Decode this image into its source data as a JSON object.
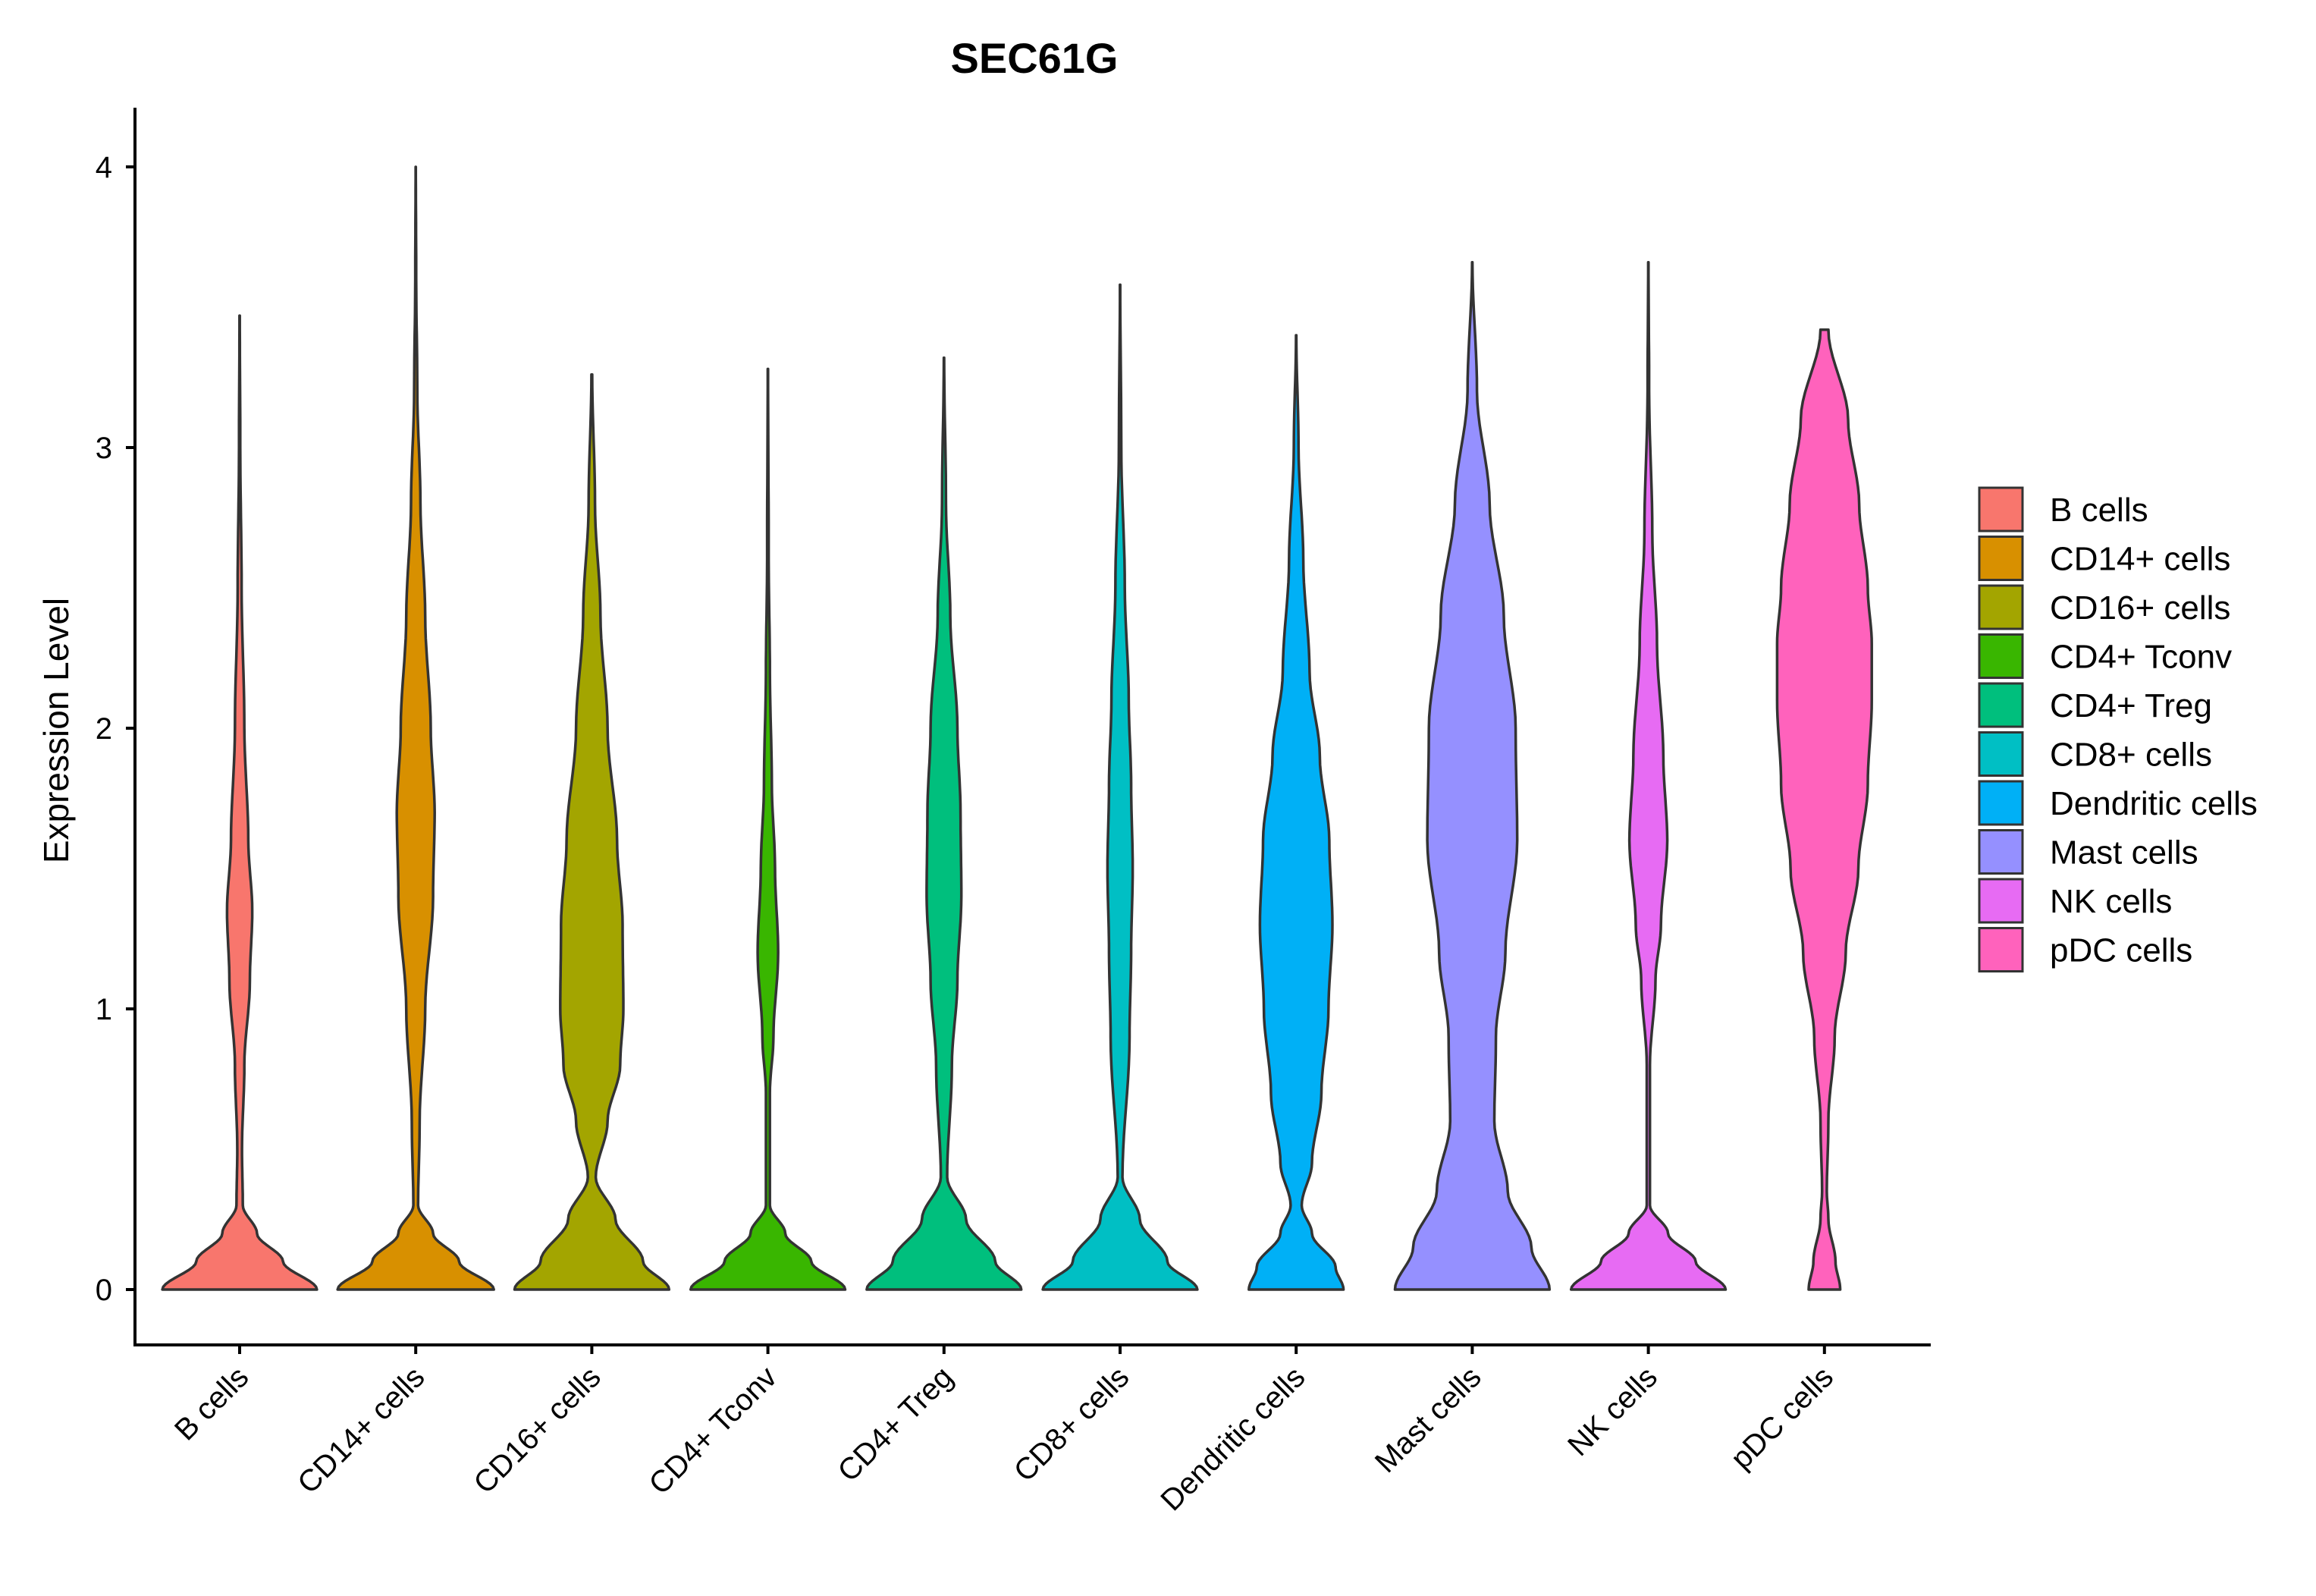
{
  "chart_data": {
    "type": "violin",
    "title": "SEC61G",
    "xlabel": "",
    "ylabel": "Expression Level",
    "ylim": [
      -0.2,
      4.2
    ],
    "yticks": [
      0,
      1,
      2,
      3,
      4
    ],
    "grid": false,
    "legend_position": "right",
    "categories": [
      "B cells",
      "CD14+ cells",
      "CD16+ cells",
      "CD4+ Tconv",
      "CD4+ Treg",
      "CD8+ cells",
      "Dendritic cells",
      "Mast cells",
      "NK cells",
      "pDC cells"
    ],
    "series": [
      {
        "name": "B cells",
        "color": "#F8766D",
        "min": 0,
        "max": 3.47,
        "profile": [
          [
            0,
            0.98
          ],
          [
            0.1,
            0.55
          ],
          [
            0.2,
            0.22
          ],
          [
            0.3,
            0.04
          ],
          [
            0.5,
            0.03
          ],
          [
            0.8,
            0.06
          ],
          [
            1.1,
            0.13
          ],
          [
            1.35,
            0.16
          ],
          [
            1.6,
            0.11
          ],
          [
            2.0,
            0.06
          ],
          [
            2.5,
            0.025
          ],
          [
            3.0,
            0.008
          ],
          [
            3.47,
            0.002
          ]
        ]
      },
      {
        "name": "CD14+ cells",
        "color": "#D89000",
        "min": 0,
        "max": 4.0,
        "profile": [
          [
            0,
            0.99
          ],
          [
            0.1,
            0.55
          ],
          [
            0.2,
            0.22
          ],
          [
            0.3,
            0.03
          ],
          [
            0.6,
            0.05
          ],
          [
            1.0,
            0.12
          ],
          [
            1.4,
            0.22
          ],
          [
            1.7,
            0.24
          ],
          [
            2.0,
            0.19
          ],
          [
            2.4,
            0.12
          ],
          [
            2.8,
            0.06
          ],
          [
            3.2,
            0.02
          ],
          [
            3.6,
            0.006
          ],
          [
            4.0,
            0.001
          ]
        ]
      },
      {
        "name": "CD16+ cells",
        "color": "#A3A500",
        "min": 0,
        "max": 3.26,
        "profile": [
          [
            0,
            0.98
          ],
          [
            0.1,
            0.65
          ],
          [
            0.25,
            0.3
          ],
          [
            0.4,
            0.05
          ],
          [
            0.6,
            0.2
          ],
          [
            0.8,
            0.36
          ],
          [
            1.0,
            0.4
          ],
          [
            1.3,
            0.39
          ],
          [
            1.6,
            0.32
          ],
          [
            2.0,
            0.2
          ],
          [
            2.4,
            0.11
          ],
          [
            2.8,
            0.04
          ],
          [
            3.26,
            0.005
          ]
        ]
      },
      {
        "name": "CD4+ Tconv",
        "color": "#39B600",
        "min": 0,
        "max": 3.28,
        "profile": [
          [
            0,
            0.98
          ],
          [
            0.1,
            0.55
          ],
          [
            0.2,
            0.22
          ],
          [
            0.3,
            0.025
          ],
          [
            0.7,
            0.025
          ],
          [
            0.9,
            0.07
          ],
          [
            1.2,
            0.13
          ],
          [
            1.5,
            0.09
          ],
          [
            1.8,
            0.05
          ],
          [
            2.2,
            0.025
          ],
          [
            2.6,
            0.01
          ],
          [
            3.28,
            0.002
          ]
        ]
      },
      {
        "name": "CD4+ Treg",
        "color": "#00BF7D",
        "min": 0,
        "max": 3.32,
        "profile": [
          [
            0,
            0.98
          ],
          [
            0.1,
            0.65
          ],
          [
            0.25,
            0.28
          ],
          [
            0.4,
            0.04
          ],
          [
            0.8,
            0.1
          ],
          [
            1.1,
            0.17
          ],
          [
            1.4,
            0.22
          ],
          [
            1.7,
            0.21
          ],
          [
            2.0,
            0.17
          ],
          [
            2.4,
            0.08
          ],
          [
            2.8,
            0.025
          ],
          [
            3.32,
            0.002
          ]
        ]
      },
      {
        "name": "CD8+ cells",
        "color": "#00BFC4",
        "min": 0,
        "max": 3.58,
        "profile": [
          [
            0,
            0.98
          ],
          [
            0.1,
            0.6
          ],
          [
            0.25,
            0.25
          ],
          [
            0.4,
            0.03
          ],
          [
            0.9,
            0.12
          ],
          [
            1.2,
            0.14
          ],
          [
            1.5,
            0.16
          ],
          [
            1.8,
            0.14
          ],
          [
            2.1,
            0.11
          ],
          [
            2.5,
            0.06
          ],
          [
            3.0,
            0.015
          ],
          [
            3.58,
            0.002
          ]
        ]
      },
      {
        "name": "Dendritic cells",
        "color": "#00B0F6",
        "min": 0,
        "max": 3.4,
        "profile": [
          [
            0,
            0.6
          ],
          [
            0.08,
            0.5
          ],
          [
            0.2,
            0.2
          ],
          [
            0.3,
            0.07
          ],
          [
            0.45,
            0.2
          ],
          [
            0.7,
            0.32
          ],
          [
            1.0,
            0.41
          ],
          [
            1.3,
            0.46
          ],
          [
            1.6,
            0.42
          ],
          [
            1.9,
            0.3
          ],
          [
            2.2,
            0.17
          ],
          [
            2.6,
            0.09
          ],
          [
            3.0,
            0.03
          ],
          [
            3.4,
            0.002
          ]
        ]
      },
      {
        "name": "Mast cells",
        "color": "#9590FF",
        "min": 0,
        "max": 3.66,
        "profile": [
          [
            0,
            0.98
          ],
          [
            0.15,
            0.75
          ],
          [
            0.35,
            0.45
          ],
          [
            0.6,
            0.28
          ],
          [
            0.9,
            0.3
          ],
          [
            1.2,
            0.42
          ],
          [
            1.6,
            0.57
          ],
          [
            2.0,
            0.55
          ],
          [
            2.4,
            0.4
          ],
          [
            2.8,
            0.22
          ],
          [
            3.2,
            0.06
          ],
          [
            3.66,
            0.002
          ]
        ]
      },
      {
        "name": "NK cells",
        "color": "#E76BF3",
        "min": 0,
        "max": 3.66,
        "profile": [
          [
            0,
            0.98
          ],
          [
            0.1,
            0.6
          ],
          [
            0.2,
            0.25
          ],
          [
            0.3,
            0.02
          ],
          [
            0.8,
            0.02
          ],
          [
            1.1,
            0.09
          ],
          [
            1.3,
            0.16
          ],
          [
            1.6,
            0.24
          ],
          [
            1.9,
            0.19
          ],
          [
            2.3,
            0.11
          ],
          [
            2.7,
            0.05
          ],
          [
            3.2,
            0.01
          ],
          [
            3.66,
            0.002
          ]
        ]
      },
      {
        "name": "pDC cells",
        "color": "#FF62BC",
        "min": 0,
        "max": 3.42,
        "profile": [
          [
            0,
            0.2
          ],
          [
            0.1,
            0.14
          ],
          [
            0.25,
            0.05
          ],
          [
            0.35,
            0.03
          ],
          [
            0.6,
            0.05
          ],
          [
            0.9,
            0.13
          ],
          [
            1.2,
            0.27
          ],
          [
            1.5,
            0.43
          ],
          [
            1.8,
            0.55
          ],
          [
            2.1,
            0.6
          ],
          [
            2.3,
            0.6
          ],
          [
            2.5,
            0.55
          ],
          [
            2.8,
            0.44
          ],
          [
            3.1,
            0.3
          ],
          [
            3.42,
            0.05
          ]
        ]
      }
    ]
  }
}
